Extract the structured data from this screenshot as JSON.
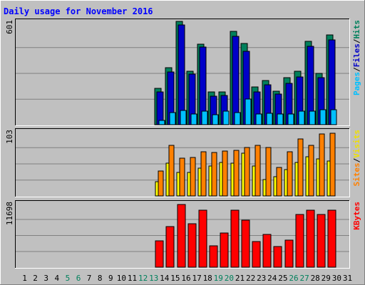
{
  "chart_data": {
    "type": "bar",
    "title": "Daily usage for November 2016",
    "days": [
      "1",
      "2",
      "3",
      "4",
      "5",
      "6",
      "7",
      "8",
      "9",
      "10",
      "11",
      "12",
      "13",
      "14",
      "15",
      "16",
      "17",
      "18",
      "19",
      "20",
      "21",
      "22",
      "23",
      "24",
      "25",
      "26",
      "27",
      "28",
      "29",
      "30",
      "31"
    ],
    "weekend_days": [
      "5",
      "6",
      "12",
      "13",
      "19",
      "20",
      "26",
      "27"
    ],
    "panels": [
      {
        "id": "hits",
        "ymax": 601,
        "ymax_label": "601",
        "side_legend": [
          {
            "text": "Hits",
            "color": "#00805c"
          },
          {
            "text": "/",
            "color": "#000000"
          },
          {
            "text": "Files",
            "color": "#0000c8"
          },
          {
            "text": "/",
            "color": "#000000"
          },
          {
            "text": "Pages",
            "color": "#00c0ff"
          }
        ],
        "series": [
          {
            "name": "Hits",
            "color": "#00805c",
            "values": [
              0,
              0,
              0,
              0,
              0,
              0,
              0,
              0,
              0,
              0,
              0,
              0,
              0,
              210,
              333,
              601,
              310,
              470,
              190,
              190,
              545,
              472,
              220,
              257,
              195,
              275,
              310,
              484,
              300,
              523,
              0
            ]
          },
          {
            "name": "Files",
            "color": "#0000c8",
            "values": [
              0,
              0,
              0,
              0,
              0,
              0,
              0,
              0,
              0,
              0,
              0,
              0,
              0,
              190,
              305,
              581,
              295,
              452,
              165,
              170,
              515,
              427,
              190,
              233,
              180,
              240,
              276,
              456,
              275,
              493,
              0
            ]
          },
          {
            "name": "Pages",
            "color": "#00c0ff",
            "values": [
              0,
              0,
              0,
              0,
              0,
              0,
              0,
              0,
              0,
              0,
              0,
              0,
              0,
              26,
              71,
              81,
              64,
              77,
              57,
              79,
              71,
              150,
              63,
              67,
              63,
              63,
              79,
              80,
              88,
              87,
              0
            ]
          }
        ]
      },
      {
        "id": "visits",
        "ymax": 103,
        "ymax_label": "103",
        "side_legend": [
          {
            "text": "Visits",
            "color": "#f0e000"
          },
          {
            "text": "/",
            "color": "#000000"
          },
          {
            "text": "Sites",
            "color": "#ff8000"
          }
        ],
        "series": [
          {
            "name": "Visits",
            "color": "#ffff00",
            "values": [
              0,
              0,
              0,
              0,
              0,
              0,
              0,
              0,
              0,
              0,
              0,
              0,
              0,
              23,
              52,
              37,
              37,
              44,
              47,
              53,
              52,
              68,
              48,
              26,
              30,
              42,
              53,
              62,
              59,
              55,
              0
            ]
          },
          {
            "name": "Sites",
            "color": "#ff8000",
            "values": [
              0,
              0,
              0,
              0,
              0,
              0,
              0,
              0,
              0,
              0,
              0,
              0,
              0,
              40,
              80,
              60,
              61,
              70,
              69,
              71,
              72,
              77,
              80,
              77,
              45,
              70,
              90,
              80,
              98,
              100,
              0
            ]
          }
        ]
      },
      {
        "id": "kbytes",
        "ymax": 11698,
        "ymax_label": "11698",
        "side_legend": [
          {
            "text": "KBytes",
            "color": "#ff0000"
          }
        ],
        "series": [
          {
            "name": "KBytes",
            "color": "#ff0000",
            "values": [
              0,
              0,
              0,
              0,
              0,
              0,
              0,
              0,
              0,
              0,
              0,
              0,
              0,
              4800,
              7450,
              11380,
              7950,
              10350,
              3950,
              6230,
              10450,
              8600,
              4700,
              6000,
              3800,
              4950,
              9600,
              10350,
              9600,
              10400,
              0
            ]
          }
        ]
      }
    ],
    "colors": {
      "background": "#c0c0c0",
      "plot_background": "#c0c0c0",
      "title": "#0000ff",
      "weekend_label": "#00805c",
      "weekday_label": "#000000",
      "gridline": "#808080"
    }
  }
}
